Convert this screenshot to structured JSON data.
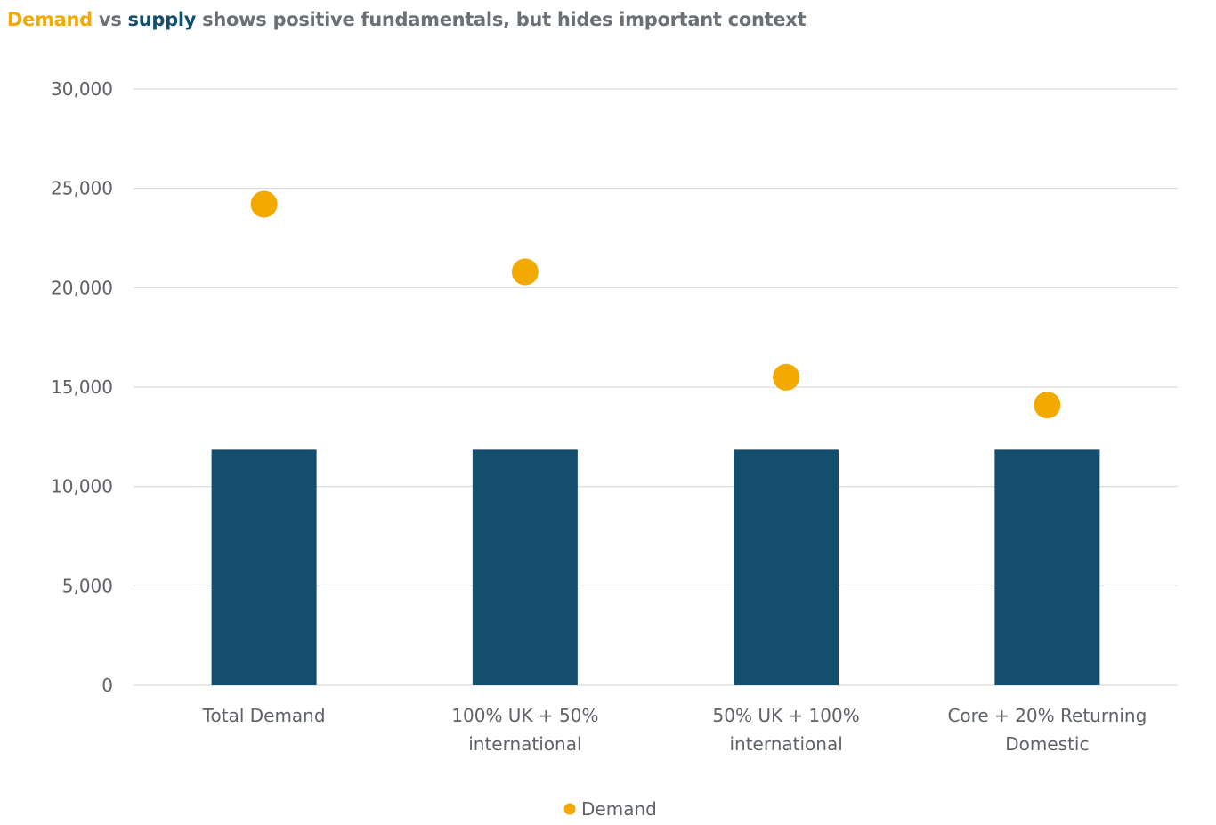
{
  "title": {
    "part_demand": "Demand",
    "part_vs": " vs ",
    "part_supply": "supply",
    "part_rest": " shows positive fundamentals, but hides important context"
  },
  "colors": {
    "demand": "#f2a900",
    "supply": "#134e6f",
    "grid": "#d9d9d9",
    "text": "#5f6368"
  },
  "legend": {
    "demand_label": "Demand"
  },
  "chart_data": {
    "type": "bar",
    "categories": [
      [
        "Total Demand"
      ],
      [
        "100% UK + 50%",
        "international"
      ],
      [
        "50% UK + 100%",
        "international"
      ],
      [
        "Core + 20% Returning",
        "Domestic"
      ]
    ],
    "series": [
      {
        "kind": "bar",
        "values": [
          11850,
          11850,
          11850,
          11850
        ]
      },
      {
        "name": "Demand",
        "kind": "scatter",
        "values": [
          24200,
          20800,
          15500,
          14100
        ]
      }
    ],
    "ylim": [
      0,
      30000
    ],
    "yticks": [
      0,
      5000,
      10000,
      15000,
      20000,
      25000,
      30000
    ],
    "ytick_labels": [
      "0",
      "5,000",
      "10,000",
      "15,000",
      "20,000",
      "25,000",
      "30,000"
    ],
    "grid": true,
    "legend_position": "bottom"
  }
}
